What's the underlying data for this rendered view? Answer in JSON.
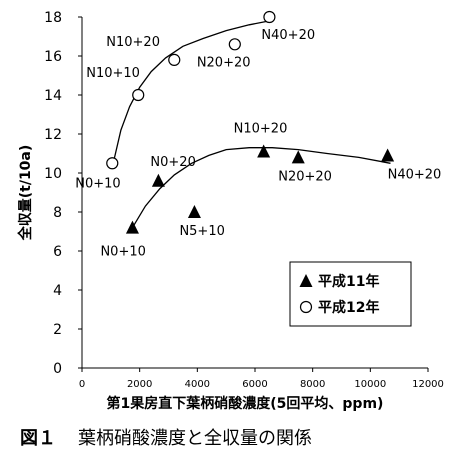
{
  "chart_data": {
    "type": "scatter",
    "title": "",
    "xlabel": "第1果房直下葉柄硝酸濃度(5回平均、ppm)",
    "ylabel": "全収量(t/10a)",
    "xlim": [
      0,
      12000
    ],
    "ylim": [
      0,
      18
    ],
    "x_ticks": [
      0,
      2000,
      4000,
      6000,
      8000,
      10000,
      12000
    ],
    "y_ticks": [
      0,
      2,
      4,
      6,
      8,
      10,
      12,
      14,
      16,
      18
    ],
    "grid": false,
    "legend": "inside-bottom-right",
    "series": [
      {
        "name": "平成11年",
        "marker": "filled-triangle",
        "points": [
          {
            "x": 1750,
            "y": 7.2,
            "label": "N0+10"
          },
          {
            "x": 2650,
            "y": 9.6,
            "label": "N0+20"
          },
          {
            "x": 3900,
            "y": 8.0,
            "label": "N5+10"
          },
          {
            "x": 6300,
            "y": 11.1,
            "label": "N10+20"
          },
          {
            "x": 7500,
            "y": 10.8,
            "label": "N20+20"
          },
          {
            "x": 10600,
            "y": 10.9,
            "label": "N40+20"
          }
        ],
        "trend": [
          [
            1750,
            7.2
          ],
          [
            2200,
            8.3
          ],
          [
            2700,
            9.2
          ],
          [
            3200,
            9.9
          ],
          [
            3800,
            10.5
          ],
          [
            4400,
            10.9
          ],
          [
            5000,
            11.2
          ],
          [
            5800,
            11.3
          ],
          [
            6600,
            11.3
          ],
          [
            7500,
            11.2
          ],
          [
            8500,
            11.0
          ],
          [
            9600,
            10.8
          ],
          [
            10700,
            10.5
          ]
        ]
      },
      {
        "name": "平成12年",
        "marker": "open-circle",
        "points": [
          {
            "x": 1050,
            "y": 10.5,
            "label": "N0+10"
          },
          {
            "x": 1950,
            "y": 14.0,
            "label": "N10+10"
          },
          {
            "x": 3200,
            "y": 15.8,
            "label": "N10+20"
          },
          {
            "x": 5300,
            "y": 16.6,
            "label": "N20+20"
          },
          {
            "x": 6500,
            "y": 18.0,
            "label": "N40+20"
          }
        ],
        "trend": [
          [
            1050,
            10.3
          ],
          [
            1350,
            12.2
          ],
          [
            1650,
            13.4
          ],
          [
            2000,
            14.4
          ],
          [
            2400,
            15.2
          ],
          [
            2900,
            15.9
          ],
          [
            3500,
            16.5
          ],
          [
            4200,
            16.9
          ],
          [
            5000,
            17.3
          ],
          [
            5800,
            17.6
          ],
          [
            6500,
            17.8
          ]
        ]
      }
    ]
  },
  "caption": {
    "number": "図１",
    "text": "葉柄硝酸濃度と全収量の関係"
  }
}
